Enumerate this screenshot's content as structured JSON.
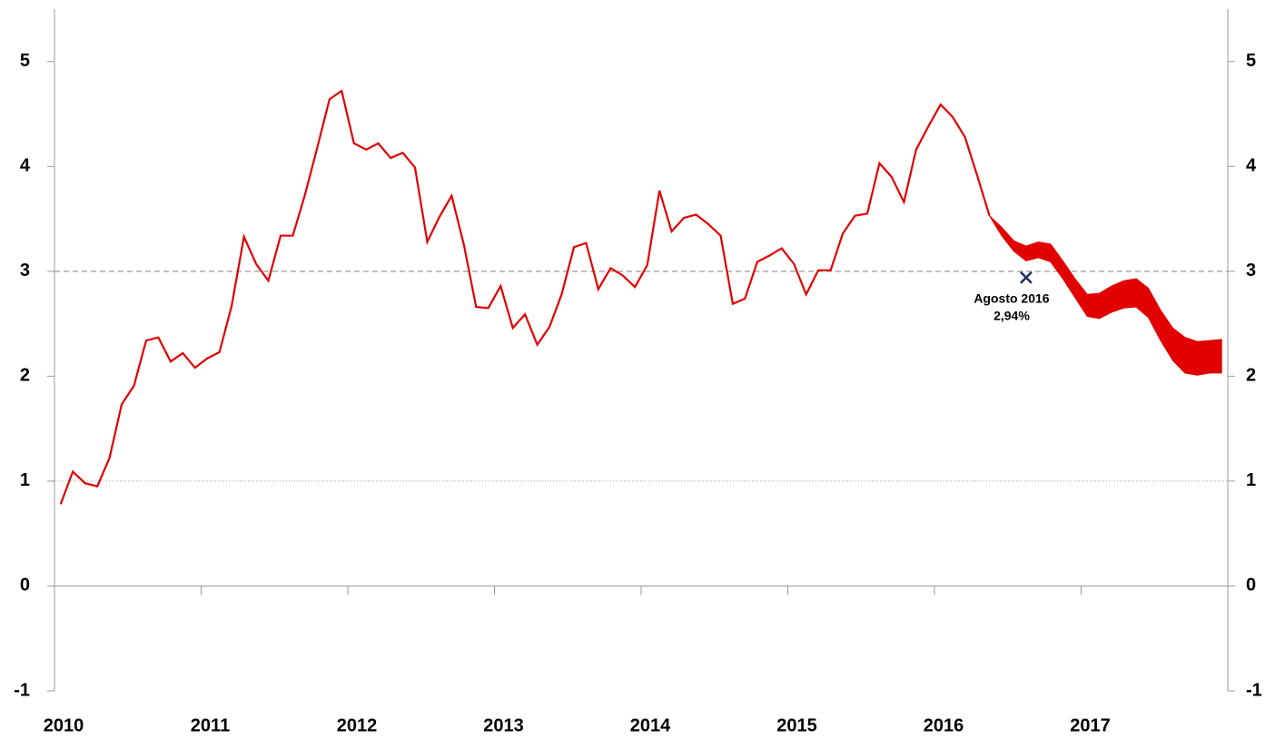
{
  "chart_data": {
    "type": "line",
    "x": [
      2010.042,
      2010.125,
      2010.208,
      2010.292,
      2010.375,
      2010.458,
      2010.542,
      2010.625,
      2010.708,
      2010.792,
      2010.875,
      2010.958,
      2011.042,
      2011.125,
      2011.208,
      2011.292,
      2011.375,
      2011.458,
      2011.542,
      2011.625,
      2011.708,
      2011.792,
      2011.875,
      2011.958,
      2012.042,
      2012.125,
      2012.208,
      2012.292,
      2012.375,
      2012.458,
      2012.542,
      2012.625,
      2012.708,
      2012.792,
      2012.875,
      2012.958,
      2013.042,
      2013.125,
      2013.208,
      2013.292,
      2013.375,
      2013.458,
      2013.542,
      2013.625,
      2013.708,
      2013.792,
      2013.875,
      2013.958,
      2014.042,
      2014.125,
      2014.208,
      2014.292,
      2014.375,
      2014.458,
      2014.542,
      2014.625,
      2014.708,
      2014.792,
      2014.875,
      2014.958,
      2015.042,
      2015.125,
      2015.208,
      2015.292,
      2015.375,
      2015.458,
      2015.542,
      2015.625,
      2015.708,
      2015.792,
      2015.875,
      2015.958,
      2016.042,
      2016.125,
      2016.208,
      2016.292,
      2016.375,
      2016.458,
      2016.542,
      2016.625,
      2016.708,
      2016.792,
      2016.875,
      2016.958,
      2017.042,
      2017.125,
      2017.208,
      2017.292,
      2017.375,
      2017.458,
      2017.542,
      2017.625,
      2017.708,
      2017.792,
      2017.875,
      2017.958
    ],
    "series": [
      {
        "color": "#e00000",
        "values": [
          0.78,
          1.09,
          0.98,
          0.95,
          1.22,
          1.73,
          1.91,
          2.34,
          2.37,
          2.14,
          2.22,
          2.08,
          2.17,
          2.23,
          2.67,
          3.33,
          3.07,
          2.91,
          3.34,
          3.34,
          3.73,
          4.18,
          4.64,
          4.72,
          4.22,
          4.16,
          4.22,
          4.08,
          4.13,
          3.99,
          3.28,
          3.52,
          3.72,
          3.25,
          2.66,
          2.65,
          2.86,
          2.46,
          2.59,
          2.3,
          2.47,
          2.78,
          3.23,
          3.27,
          2.83,
          3.03,
          2.96,
          2.85,
          3.06,
          3.77,
          3.38,
          3.51,
          3.54,
          3.45,
          3.34,
          2.69,
          2.74,
          3.09,
          3.15,
          3.22,
          3.07,
          2.78,
          3.01,
          3.01,
          3.36,
          3.53,
          3.55,
          4.03,
          3.9,
          3.66,
          4.16,
          4.38,
          4.59,
          4.47,
          4.28,
          3.91,
          3.53,
          null,
          null,
          null,
          null,
          null,
          null,
          null,
          null,
          null,
          null,
          null,
          null,
          null,
          null,
          null,
          null,
          null,
          null,
          null
        ]
      }
    ],
    "band": {
      "color": "#e00000",
      "upper": [
        null,
        null,
        null,
        null,
        null,
        null,
        null,
        null,
        null,
        null,
        null,
        null,
        null,
        null,
        null,
        null,
        null,
        null,
        null,
        null,
        null,
        null,
        null,
        null,
        null,
        null,
        null,
        null,
        null,
        null,
        null,
        null,
        null,
        null,
        null,
        null,
        null,
        null,
        null,
        null,
        null,
        null,
        null,
        null,
        null,
        null,
        null,
        null,
        null,
        null,
        null,
        null,
        null,
        null,
        null,
        null,
        null,
        null,
        null,
        null,
        null,
        null,
        null,
        null,
        null,
        null,
        null,
        null,
        null,
        null,
        null,
        null,
        null,
        null,
        null,
        null,
        3.53,
        3.42,
        3.29,
        3.24,
        3.28,
        3.26,
        3.1,
        2.93,
        2.78,
        2.79,
        2.86,
        2.91,
        2.93,
        2.84,
        2.63,
        2.46,
        2.37,
        2.33,
        2.34,
        2.35
      ],
      "lower": [
        null,
        null,
        null,
        null,
        null,
        null,
        null,
        null,
        null,
        null,
        null,
        null,
        null,
        null,
        null,
        null,
        null,
        null,
        null,
        null,
        null,
        null,
        null,
        null,
        null,
        null,
        null,
        null,
        null,
        null,
        null,
        null,
        null,
        null,
        null,
        null,
        null,
        null,
        null,
        null,
        null,
        null,
        null,
        null,
        null,
        null,
        null,
        null,
        null,
        null,
        null,
        null,
        null,
        null,
        null,
        null,
        null,
        null,
        null,
        null,
        null,
        null,
        null,
        null,
        null,
        null,
        null,
        null,
        null,
        null,
        null,
        null,
        null,
        null,
        null,
        null,
        3.53,
        3.34,
        3.19,
        3.1,
        3.13,
        3.09,
        2.93,
        2.75,
        2.57,
        2.55,
        2.61,
        2.65,
        2.66,
        2.56,
        2.34,
        2.15,
        2.03,
        2.01,
        2.03,
        2.03
      ]
    },
    "xlim": [
      2010,
      2018
    ],
    "xticks": [
      2010,
      2011,
      2012,
      2013,
      2014,
      2015,
      2016,
      2017
    ],
    "ylim": [
      -1,
      5.5
    ],
    "yticks": [
      -1,
      0,
      1,
      2,
      3,
      4,
      5
    ],
    "y2lim": [
      -1,
      5.5
    ],
    "y2ticks": [
      -1,
      0,
      1,
      2,
      3,
      4,
      5
    ],
    "reference_lines": [
      {
        "y": 3,
        "style": "dashed"
      },
      {
        "y": 1,
        "style": "dotted"
      }
    ],
    "annotation": {
      "x": 2016.625,
      "y": 2.94,
      "label": "Agosto 2016",
      "value_label": "2,94%",
      "color": "#1f2d5a"
    }
  }
}
